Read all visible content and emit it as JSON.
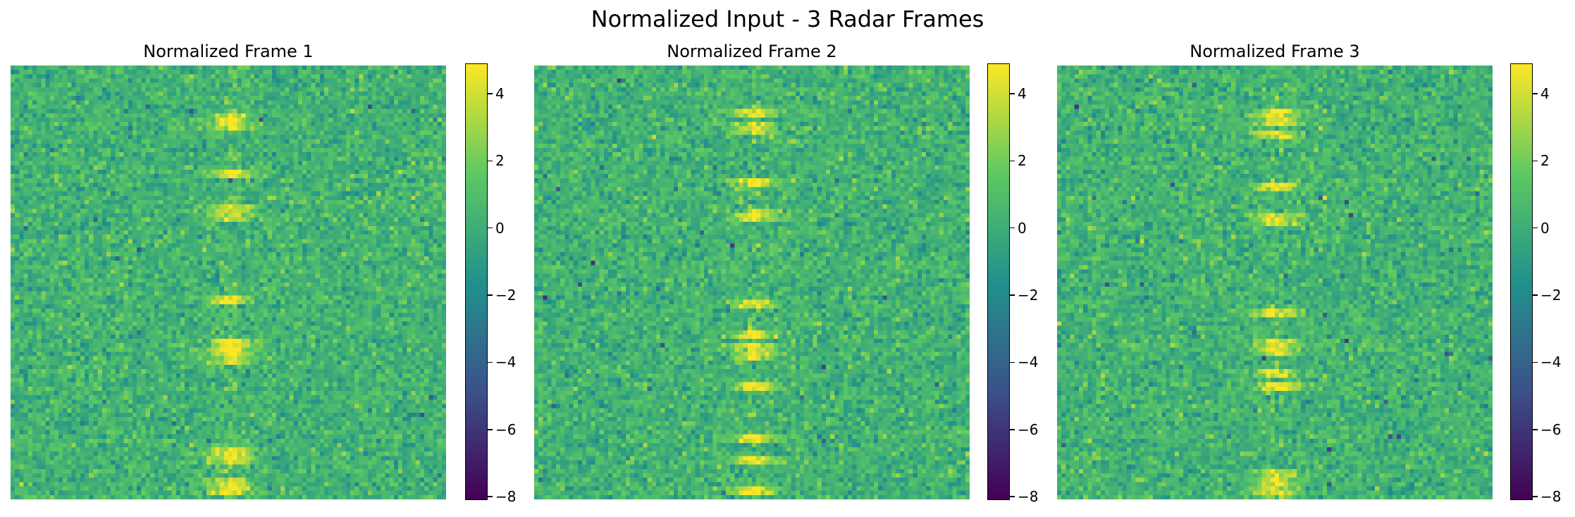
{
  "figure": {
    "title": "Normalized Input - 3 Radar Frames"
  },
  "colors": {
    "colormap": [
      "#440154",
      "#3b528b",
      "#21918c",
      "#5ec962",
      "#fde725"
    ]
  },
  "chart_data": [
    {
      "type": "heatmap",
      "title": "Normalized Frame 1",
      "colormap": "viridis",
      "axes": "off",
      "grid": false,
      "color_range": [
        -8.1,
        4.9
      ],
      "colorbar_ticks": [
        "4",
        "2",
        "0",
        "−2",
        "−4",
        "−6",
        "−8"
      ],
      "colorbar_values": [
        4,
        2,
        0,
        -2,
        -4,
        -6,
        -8
      ],
      "resolution": [
        100,
        100
      ],
      "bright_column": 50,
      "bright_bands_rows": [
        11,
        12,
        13,
        24,
        32,
        34,
        53,
        63,
        65,
        67,
        88,
        90,
        95,
        97
      ],
      "bright_bands_value": 3.5
    },
    {
      "type": "heatmap",
      "title": "Normalized Frame 2",
      "colormap": "viridis",
      "axes": "off",
      "grid": false,
      "color_range": [
        -8.1,
        4.9
      ],
      "colorbar_ticks": [
        "4",
        "2",
        "0",
        "−2",
        "−4",
        "−6",
        "−8"
      ],
      "colorbar_values": [
        4,
        2,
        0,
        -2,
        -4,
        -6,
        -8
      ],
      "resolution": [
        100,
        100
      ],
      "bright_column": 50,
      "bright_bands_rows": [
        10,
        13,
        14,
        26,
        33,
        34,
        54,
        61,
        64,
        66,
        73,
        85,
        90,
        97
      ],
      "bright_bands_value": 3.5
    },
    {
      "type": "heatmap",
      "title": "Normalized Frame 3",
      "colormap": "viridis",
      "axes": "off",
      "grid": false,
      "color_range": [
        -8.1,
        4.9
      ],
      "colorbar_ticks": [
        "4",
        "2",
        "0",
        "−2",
        "−4",
        "−6",
        "−8"
      ],
      "colorbar_values": [
        4,
        2,
        0,
        -2,
        -4,
        -6,
        -8
      ],
      "resolution": [
        100,
        100
      ],
      "bright_column": 50,
      "bright_bands_rows": [
        10,
        12,
        15,
        27,
        34,
        35,
        56,
        63,
        65,
        70,
        73,
        93,
        95,
        97
      ],
      "bright_bands_value": 3.5
    }
  ]
}
